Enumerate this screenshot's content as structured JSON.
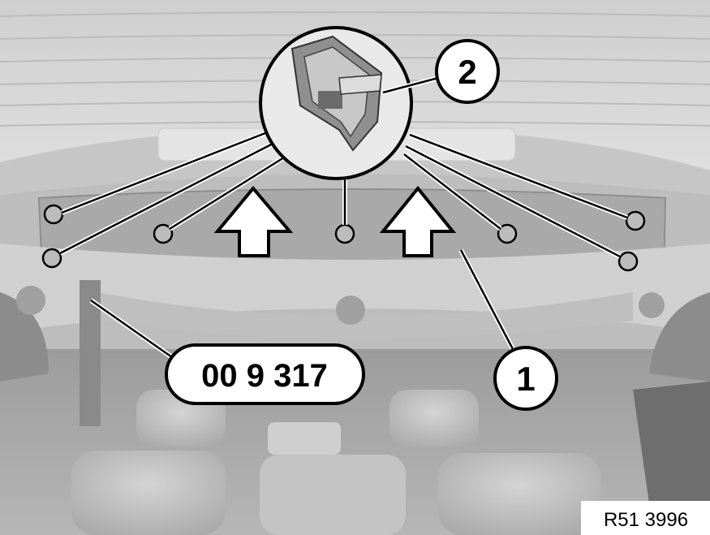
{
  "figure": {
    "callouts": [
      {
        "id": "callout-1",
        "label": "1"
      },
      {
        "id": "callout-2",
        "label": "2"
      }
    ],
    "tool_label": "00 9 317",
    "figure_code": "R51 3996"
  }
}
